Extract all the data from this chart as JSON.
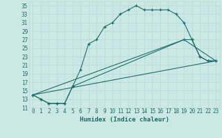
{
  "title": "",
  "xlabel": "Humidex (Indice chaleur)",
  "bg_color": "#cce8e4",
  "line_color": "#1a6b6b",
  "grid_color": "#b8dbd7",
  "xlim": [
    -0.5,
    23.5
  ],
  "ylim": [
    11,
    36
  ],
  "xticks": [
    0,
    1,
    2,
    3,
    4,
    5,
    6,
    7,
    8,
    9,
    10,
    11,
    12,
    13,
    14,
    15,
    16,
    17,
    18,
    19,
    20,
    21,
    22,
    23
  ],
  "yticks": [
    11,
    13,
    15,
    17,
    19,
    21,
    23,
    25,
    27,
    29,
    31,
    33,
    35
  ],
  "curve1_x": [
    0,
    1,
    2,
    3,
    4,
    5,
    6,
    7,
    8,
    9,
    10,
    11,
    12,
    13,
    14,
    15,
    16,
    17,
    18,
    19,
    20,
    21,
    22,
    23
  ],
  "curve1_y": [
    14,
    13,
    12,
    12,
    12,
    16,
    20,
    26,
    27,
    30,
    31,
    33,
    34,
    35,
    34,
    34,
    34,
    34,
    33,
    31,
    27,
    23,
    22,
    22
  ],
  "curve2_x": [
    0,
    1,
    2,
    3,
    4,
    5,
    19,
    20,
    21,
    22,
    23
  ],
  "curve2_y": [
    14,
    13,
    12,
    12,
    12,
    16,
    27,
    27,
    23,
    22,
    22
  ],
  "curve3_x": [
    0,
    23
  ],
  "curve3_y": [
    14,
    22
  ],
  "curve4_x": [
    0,
    19,
    23
  ],
  "curve4_y": [
    14,
    27,
    22
  ]
}
